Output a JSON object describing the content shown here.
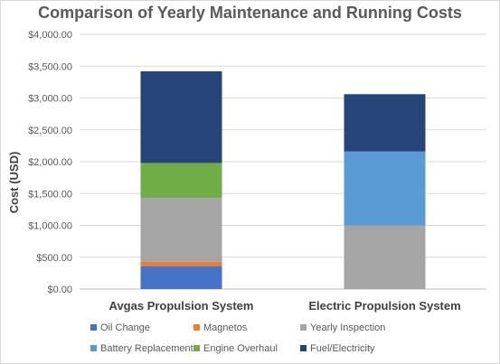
{
  "chart_data": {
    "type": "bar",
    "stacked": true,
    "title": "Comparison of Yearly Maintenance and Running Costs",
    "xlabel": "",
    "ylabel": "Cost (USD)",
    "ylim": [
      0,
      4000
    ],
    "yticks": [
      "$0.00",
      "$500.00",
      "$1,000.00",
      "$1,500.00",
      "$2,000.00",
      "$2,500.00",
      "$3,000.00",
      "$3,500.00",
      "$4,000.00"
    ],
    "grid": true,
    "legend_position": "bottom",
    "categories": [
      "Avgas Propulsion System",
      "Electric Propulsion System"
    ],
    "series": [
      {
        "name": "Oil Change",
        "color": "#4472c4",
        "values": [
          360,
          0
        ]
      },
      {
        "name": "Magnetos",
        "color": "#ed7d31",
        "values": [
          70,
          0
        ]
      },
      {
        "name": "Yearly Inspection",
        "color": "#a5a5a5",
        "values": [
          1000,
          1000
        ]
      },
      {
        "name": "Battery Replacement",
        "color": "#5b9bd5",
        "values": [
          0,
          1160
        ]
      },
      {
        "name": "Engine Overhaul",
        "color": "#70ad47",
        "values": [
          550,
          0
        ]
      },
      {
        "name": "Fuel/Electricity",
        "color": "#264478",
        "values": [
          1440,
          900
        ]
      }
    ]
  }
}
